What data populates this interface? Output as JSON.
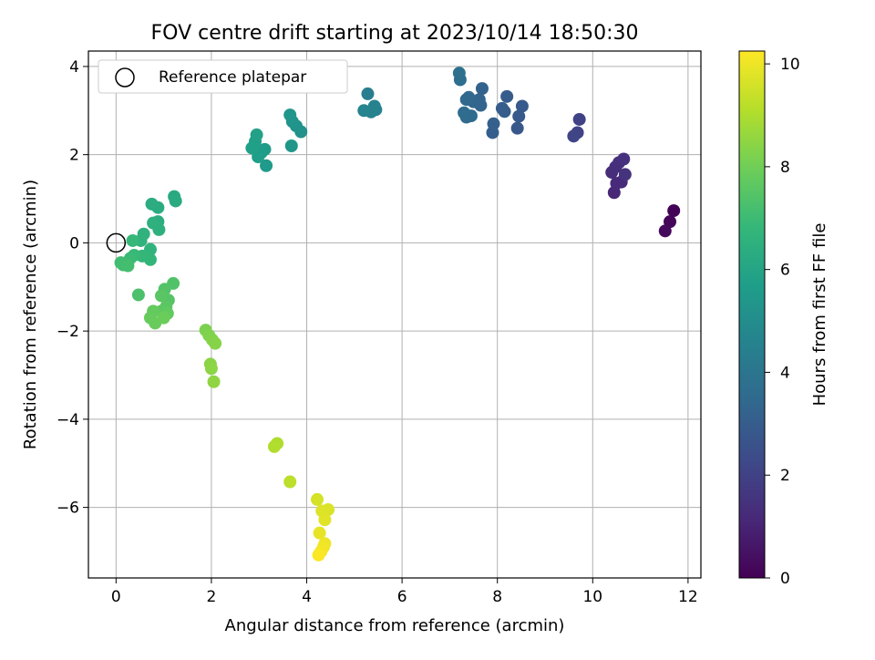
{
  "chart_data": {
    "type": "scatter",
    "title": "FOV centre drift starting at 2023/10/14 18:50:30",
    "xlabel": "Angular distance from reference (arcmin)",
    "ylabel": "Rotation from reference (arcmin)",
    "xlim": [
      -0.58,
      12.27
    ],
    "ylim": [
      -7.6,
      4.35
    ],
    "xticks": [
      0,
      2,
      4,
      6,
      8,
      10,
      12
    ],
    "yticks": [
      -6,
      -4,
      -2,
      0,
      2,
      4
    ],
    "grid": true,
    "legend": {
      "position": "top-left",
      "entries": [
        "Reference platepar"
      ]
    },
    "reference_point": {
      "x": 0,
      "y": 0
    },
    "colorbar": {
      "label": "Hours from first FF file",
      "min": 0,
      "max": 10.25,
      "ticks": [
        0,
        2,
        4,
        6,
        8,
        10
      ],
      "colormap": "viridis",
      "colormap_stops": [
        "#440154",
        "#482878",
        "#3e4a89",
        "#31688e",
        "#26828e",
        "#1f9e89",
        "#35b779",
        "#6ece58",
        "#b5de2b",
        "#fde725"
      ]
    },
    "points": [
      {
        "x": 11.7,
        "y": 0.73,
        "h": 0.05
      },
      {
        "x": 11.62,
        "y": 0.48,
        "h": 0.15
      },
      {
        "x": 11.52,
        "y": 0.27,
        "h": 0.25
      },
      {
        "x": 10.45,
        "y": 1.14,
        "h": 1.1
      },
      {
        "x": 10.5,
        "y": 1.35,
        "h": 1.2
      },
      {
        "x": 10.6,
        "y": 1.38,
        "h": 1.25
      },
      {
        "x": 10.4,
        "y": 1.6,
        "h": 1.3
      },
      {
        "x": 10.48,
        "y": 1.72,
        "h": 1.35
      },
      {
        "x": 10.55,
        "y": 1.82,
        "h": 1.4
      },
      {
        "x": 10.65,
        "y": 1.9,
        "h": 1.45
      },
      {
        "x": 10.68,
        "y": 1.55,
        "h": 1.5
      },
      {
        "x": 9.72,
        "y": 2.8,
        "h": 2.0
      },
      {
        "x": 9.68,
        "y": 2.5,
        "h": 2.05
      },
      {
        "x": 9.6,
        "y": 2.42,
        "h": 2.1
      },
      {
        "x": 8.42,
        "y": 2.6,
        "h": 2.8
      },
      {
        "x": 8.45,
        "y": 2.87,
        "h": 2.85
      },
      {
        "x": 8.52,
        "y": 3.1,
        "h": 2.9
      },
      {
        "x": 8.2,
        "y": 3.32,
        "h": 2.95
      },
      {
        "x": 8.1,
        "y": 3.05,
        "h": 3.0
      },
      {
        "x": 8.15,
        "y": 2.98,
        "h": 3.0
      },
      {
        "x": 7.9,
        "y": 2.5,
        "h": 3.05
      },
      {
        "x": 7.92,
        "y": 2.7,
        "h": 3.1
      },
      {
        "x": 7.68,
        "y": 3.5,
        "h": 3.2
      },
      {
        "x": 7.62,
        "y": 3.25,
        "h": 3.25
      },
      {
        "x": 7.65,
        "y": 3.12,
        "h": 3.3
      },
      {
        "x": 7.5,
        "y": 3.2,
        "h": 3.35
      },
      {
        "x": 7.4,
        "y": 3.3,
        "h": 3.4
      },
      {
        "x": 7.35,
        "y": 3.25,
        "h": 3.45
      },
      {
        "x": 7.45,
        "y": 2.88,
        "h": 3.5
      },
      {
        "x": 7.35,
        "y": 2.85,
        "h": 3.55
      },
      {
        "x": 7.3,
        "y": 2.95,
        "h": 3.6
      },
      {
        "x": 7.22,
        "y": 3.7,
        "h": 3.7
      },
      {
        "x": 7.2,
        "y": 3.85,
        "h": 3.75
      },
      {
        "x": 5.28,
        "y": 3.38,
        "h": 4.4
      },
      {
        "x": 5.42,
        "y": 3.1,
        "h": 4.5
      },
      {
        "x": 5.45,
        "y": 3.02,
        "h": 4.55
      },
      {
        "x": 5.35,
        "y": 2.97,
        "h": 4.6
      },
      {
        "x": 5.2,
        "y": 3.0,
        "h": 4.65
      },
      {
        "x": 3.88,
        "y": 2.52,
        "h": 5.2
      },
      {
        "x": 3.78,
        "y": 2.65,
        "h": 5.25
      },
      {
        "x": 3.7,
        "y": 2.75,
        "h": 5.3
      },
      {
        "x": 3.65,
        "y": 2.9,
        "h": 5.35
      },
      {
        "x": 3.68,
        "y": 2.2,
        "h": 5.4
      },
      {
        "x": 3.15,
        "y": 1.75,
        "h": 5.55
      },
      {
        "x": 3.12,
        "y": 2.12,
        "h": 5.6
      },
      {
        "x": 3.05,
        "y": 2.05,
        "h": 5.65
      },
      {
        "x": 2.98,
        "y": 1.95,
        "h": 5.7
      },
      {
        "x": 2.92,
        "y": 2.3,
        "h": 5.75
      },
      {
        "x": 2.85,
        "y": 2.15,
        "h": 5.8
      },
      {
        "x": 2.95,
        "y": 2.45,
        "h": 5.85
      },
      {
        "x": 1.22,
        "y": 1.05,
        "h": 6.2
      },
      {
        "x": 1.25,
        "y": 0.95,
        "h": 6.25
      },
      {
        "x": 0.88,
        "y": 0.8,
        "h": 6.3
      },
      {
        "x": 0.75,
        "y": 0.88,
        "h": 6.35
      },
      {
        "x": 0.88,
        "y": 0.48,
        "h": 6.4
      },
      {
        "x": 0.9,
        "y": 0.3,
        "h": 6.45
      },
      {
        "x": 0.78,
        "y": 0.45,
        "h": 6.5
      },
      {
        "x": 0.58,
        "y": 0.2,
        "h": 6.55
      },
      {
        "x": 0.52,
        "y": 0.05,
        "h": 6.6
      },
      {
        "x": 0.72,
        "y": -0.15,
        "h": 6.65
      },
      {
        "x": 0.65,
        "y": -0.3,
        "h": 6.7
      },
      {
        "x": 0.72,
        "y": -0.38,
        "h": 6.75
      },
      {
        "x": 0.55,
        "y": -0.3,
        "h": 6.8
      },
      {
        "x": 0.35,
        "y": 0.05,
        "h": 6.85
      },
      {
        "x": 0.38,
        "y": -0.28,
        "h": 6.9
      },
      {
        "x": 0.3,
        "y": -0.35,
        "h": 6.95
      },
      {
        "x": 0.22,
        "y": -0.45,
        "h": 7.0
      },
      {
        "x": 0.1,
        "y": -0.45,
        "h": 7.05
      },
      {
        "x": 0.15,
        "y": -0.5,
        "h": 7.1
      },
      {
        "x": 0.25,
        "y": -0.52,
        "h": 7.15
      },
      {
        "x": 0.47,
        "y": -1.18,
        "h": 7.3
      },
      {
        "x": 1.2,
        "y": -0.92,
        "h": 7.4
      },
      {
        "x": 1.02,
        "y": -1.05,
        "h": 7.45
      },
      {
        "x": 1.1,
        "y": -1.3,
        "h": 7.5
      },
      {
        "x": 0.95,
        "y": -1.2,
        "h": 7.55
      },
      {
        "x": 1.05,
        "y": -1.45,
        "h": 7.6
      },
      {
        "x": 0.95,
        "y": -1.55,
        "h": 7.65
      },
      {
        "x": 1.08,
        "y": -1.6,
        "h": 7.7
      },
      {
        "x": 0.78,
        "y": -1.55,
        "h": 7.75
      },
      {
        "x": 0.72,
        "y": -1.7,
        "h": 7.8
      },
      {
        "x": 0.82,
        "y": -1.82,
        "h": 7.85
      },
      {
        "x": 1.0,
        "y": -1.7,
        "h": 7.9
      },
      {
        "x": 1.88,
        "y": -1.98,
        "h": 8.2
      },
      {
        "x": 1.95,
        "y": -2.1,
        "h": 8.25
      },
      {
        "x": 2.02,
        "y": -2.2,
        "h": 8.3
      },
      {
        "x": 2.08,
        "y": -2.28,
        "h": 8.35
      },
      {
        "x": 1.98,
        "y": -2.75,
        "h": 8.4
      },
      {
        "x": 2.0,
        "y": -2.85,
        "h": 8.45
      },
      {
        "x": 2.05,
        "y": -3.15,
        "h": 8.5
      },
      {
        "x": 3.38,
        "y": -4.55,
        "h": 9.0
      },
      {
        "x": 3.32,
        "y": -4.62,
        "h": 9.05
      },
      {
        "x": 3.65,
        "y": -5.42,
        "h": 9.2
      },
      {
        "x": 4.22,
        "y": -5.82,
        "h": 9.6
      },
      {
        "x": 4.45,
        "y": -6.05,
        "h": 9.7
      },
      {
        "x": 4.32,
        "y": -6.08,
        "h": 9.75
      },
      {
        "x": 4.38,
        "y": -6.28,
        "h": 9.8
      },
      {
        "x": 4.27,
        "y": -6.58,
        "h": 9.9
      },
      {
        "x": 4.38,
        "y": -6.82,
        "h": 10.0
      },
      {
        "x": 4.35,
        "y": -6.9,
        "h": 10.05
      },
      {
        "x": 4.3,
        "y": -7.0,
        "h": 10.1
      },
      {
        "x": 4.25,
        "y": -7.08,
        "h": 10.2
      }
    ]
  }
}
